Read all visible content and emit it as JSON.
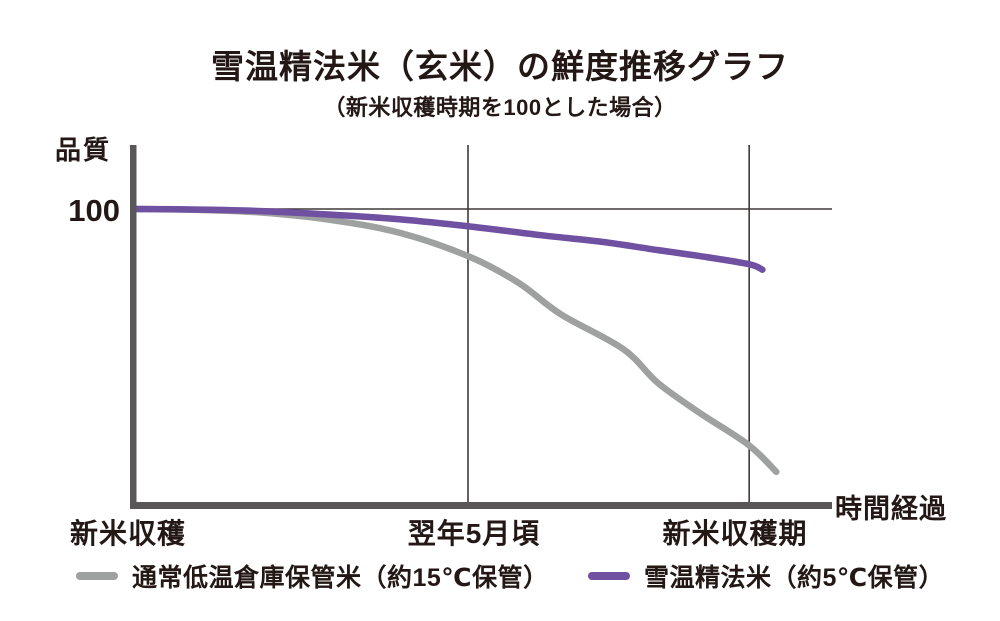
{
  "chart_data": {
    "type": "line",
    "title": "雪温精法米（玄米）の鮮度推移グラフ",
    "subtitle": "（新米収穫時期を100とした場合）",
    "ylabel": "品質",
    "xlabel": "時間経過",
    "y_tick_label": "100",
    "ylim": [
      0,
      115
    ],
    "xlim": [
      0,
      1
    ],
    "grid": "vertical-at-ticks-plus-reference-line-at-100",
    "legend_position": "bottom",
    "x_ticks": [
      {
        "label": "新米収穫",
        "pos": 0.0,
        "gridline": false
      },
      {
        "label": "翌年5月頃",
        "pos": 0.477,
        "gridline": true
      },
      {
        "label": "新米収穫期",
        "pos": 0.881,
        "gridline": true
      }
    ],
    "series": [
      {
        "name": "通常低温倉庫保管米（約15℃保管）",
        "color": "#9fa0a0",
        "points": [
          [
            0.0,
            100
          ],
          [
            0.09,
            99.7
          ],
          [
            0.18,
            98.8
          ],
          [
            0.28,
            96.3
          ],
          [
            0.38,
            91.9
          ],
          [
            0.48,
            83.8
          ],
          [
            0.55,
            75.0
          ],
          [
            0.61,
            64.5
          ],
          [
            0.7,
            52.7
          ],
          [
            0.75,
            41.2
          ],
          [
            0.81,
            31.1
          ],
          [
            0.88,
            20.3
          ],
          [
            0.92,
            11.2
          ]
        ]
      },
      {
        "name": "雪温精法米（約5℃保管）",
        "color": "#7050a0",
        "points": [
          [
            0.0,
            100
          ],
          [
            0.09,
            99.8
          ],
          [
            0.18,
            99.3
          ],
          [
            0.28,
            98.1
          ],
          [
            0.38,
            96.5
          ],
          [
            0.48,
            94.1
          ],
          [
            0.58,
            91.2
          ],
          [
            0.67,
            88.9
          ],
          [
            0.75,
            86.1
          ],
          [
            0.81,
            84.1
          ],
          [
            0.88,
            81.4
          ],
          [
            0.9,
            79.5
          ]
        ]
      }
    ],
    "colors": {
      "axis": "#595757",
      "grid": "#3e3a39",
      "text": "#231815",
      "background": "#ffffff"
    }
  }
}
